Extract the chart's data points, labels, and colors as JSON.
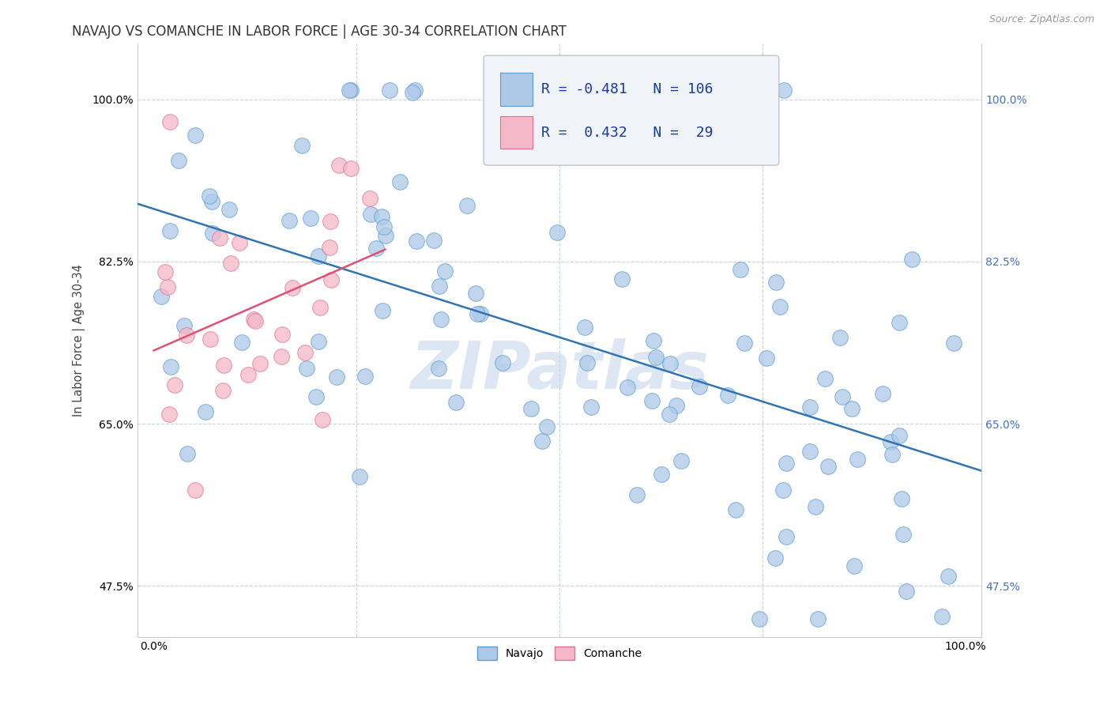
{
  "title": "NAVAJO VS COMANCHE IN LABOR FORCE | AGE 30-34 CORRELATION CHART",
  "source_text": "Source: ZipAtlas.com",
  "ylabel": "In Labor Force | Age 30-34",
  "xlim": [
    -0.02,
    1.02
  ],
  "ylim": [
    0.42,
    1.06
  ],
  "yticks": [
    0.475,
    0.65,
    0.825,
    1.0
  ],
  "ytick_labels": [
    "47.5%",
    "65.0%",
    "82.5%",
    "100.0%"
  ],
  "xticks": [
    0.0,
    1.0
  ],
  "xtick_labels": [
    "0.0%",
    "100.0%"
  ],
  "navajo_R": -0.481,
  "navajo_N": 106,
  "comanche_R": 0.432,
  "comanche_N": 29,
  "navajo_color": "#adc9e8",
  "navajo_edge_color": "#5b9bd5",
  "comanche_color": "#f4b8c8",
  "comanche_edge_color": "#e07090",
  "navajo_line_color": "#2e75b6",
  "comanche_line_color": "#e05070",
  "watermark_text": "ZIPatlas",
  "watermark_color": "#c5d8ec",
  "background_color": "#ffffff",
  "grid_color": "#c8d4dc",
  "right_tick_color": "#4472c4",
  "navajo_line_start_y": 0.875,
  "navajo_line_end_y": 0.618,
  "comanche_line_start_x": 0.0,
  "comanche_line_start_y": 0.775,
  "comanche_line_end_x": 0.285,
  "comanche_line_end_y": 0.93
}
